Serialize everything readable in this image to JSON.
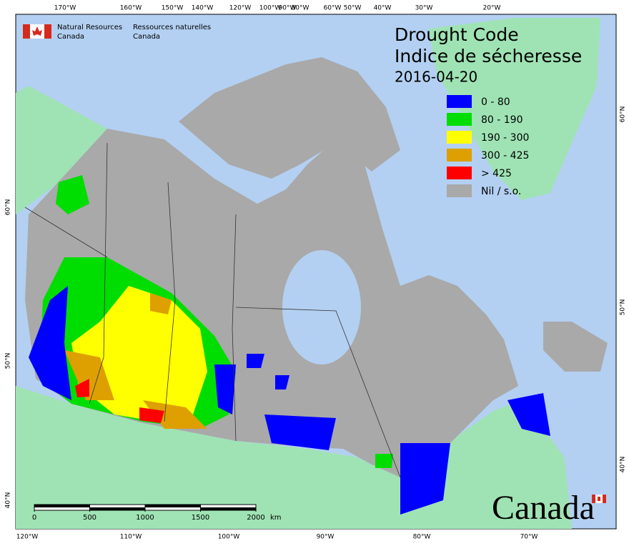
{
  "header": {
    "org_en": [
      "Natural Resources",
      "Canada"
    ],
    "org_fr": [
      "Ressources naturelles",
      "Canada"
    ]
  },
  "title": {
    "en": "Drought Code",
    "fr": "Indice de sécheresse",
    "date": "2016-04-20"
  },
  "legend": [
    {
      "label": "0 - 80",
      "color": "#0000ff"
    },
    {
      "label": "80 - 190",
      "color": "#00dd00"
    },
    {
      "label": "190 - 300",
      "color": "#ffff00"
    },
    {
      "label": "300 - 425",
      "color": "#dda000"
    },
    {
      "label": "> 425",
      "color": "#ff0000"
    },
    {
      "label": "Nil / s.o.",
      "color": "#a9a9a9"
    }
  ],
  "graticule": {
    "top": [
      "170°W",
      "160°W",
      "150°W",
      "140°W",
      "120°W",
      "100°W",
      "90°W",
      "80°W",
      "60°W",
      "50°W",
      "40°W",
      "30°W",
      "20°W"
    ],
    "bottom": [
      "120°W",
      "110°W",
      "100°W",
      "90°W",
      "80°W",
      "70°W"
    ],
    "left": [
      "60°N",
      "50°N",
      "40°N"
    ],
    "right": [
      "60°N",
      "50°N",
      "40°N"
    ]
  },
  "scale_bar": {
    "ticks": [
      0,
      500,
      1000,
      1500,
      2000
    ],
    "unit": "km"
  },
  "wordmark": "Canada"
}
